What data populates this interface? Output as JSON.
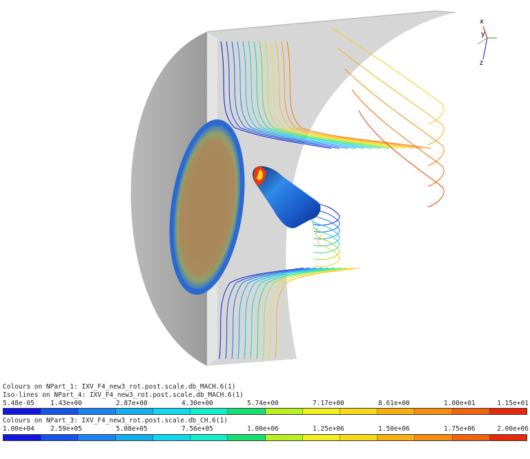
{
  "triad": {
    "x_label": "x",
    "y_label": "y",
    "z_label": "z",
    "x_color": "#e0202c",
    "y_color": "#2cb52c",
    "z_color": "#2a3ad8"
  },
  "legend1": {
    "line1": "Colours on NPart_1: IXV_F4_new3_rot.post.scale.db_MACH.6(1)",
    "line2": "Iso-lines on NPart_4: IXV_F4_new3_rot.post.scale.db_MACH.6(1)",
    "ticks": [
      "5.48e-05",
      "1.43e+00",
      "2.87e+00",
      "4.30e+00",
      "5.74e+00",
      "7.17e+00",
      "8.61e+00",
      "1.00e+01",
      "1.15e+01"
    ],
    "colors": [
      "#1018e0",
      "#1454e8",
      "#1a84f0",
      "#10b0f0",
      "#10d8f0",
      "#10f0c8",
      "#18e070",
      "#b8f020",
      "#f0f020",
      "#f8d818",
      "#f8b010",
      "#f88c10",
      "#f06410",
      "#e82808"
    ]
  },
  "legend2": {
    "line1": "Colours on NPart_3: IXV_F4_new3_rot.post.scale.db_CH.6(1)",
    "ticks": [
      "1.00e+04",
      "2.59e+05",
      "5.08e+05",
      "7.56e+05",
      "1.00e+06",
      "1.25e+06",
      "1.50e+06",
      "1.75e+06",
      "2.00e+06"
    ],
    "colors": [
      "#1018e0",
      "#1454e8",
      "#1a84f0",
      "#10b0f0",
      "#10d8f0",
      "#10f0c8",
      "#18e070",
      "#b8f020",
      "#f0f020",
      "#f8d818",
      "#f8b010",
      "#f88c10",
      "#f06410",
      "#e82808"
    ]
  }
}
